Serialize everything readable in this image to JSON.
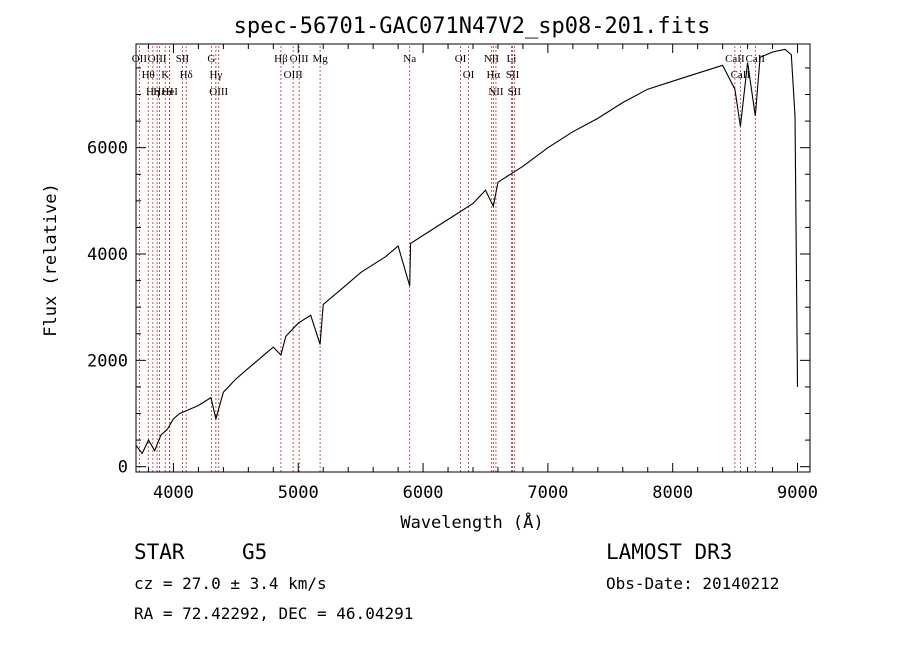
{
  "chart_data": {
    "type": "line",
    "title": "spec-56701-GAC071N47V2_sp08-201.fits",
    "xlabel": "Wavelength (Å)",
    "ylabel": "Flux (relative)",
    "xlim": [
      3700,
      9100
    ],
    "ylim": [
      -100,
      7950
    ],
    "xticks": [
      4000,
      5000,
      6000,
      7000,
      8000,
      9000
    ],
    "xtick_labels": [
      "4000",
      "5000",
      "6000",
      "7000",
      "8000",
      "9000"
    ],
    "yticks": [
      0,
      2000,
      4000,
      6000
    ],
    "ytick_labels": [
      "0",
      "2000",
      "4000",
      "6000"
    ],
    "grid": false,
    "series": [
      {
        "name": "flux",
        "x": [
          3700,
          3750,
          3800,
          3850,
          3900,
          3950,
          4000,
          4050,
          4100,
          4200,
          4300,
          4340,
          4400,
          4500,
          4600,
          4700,
          4800,
          4861,
          4900,
          5000,
          5100,
          5175,
          5200,
          5300,
          5400,
          5500,
          5600,
          5700,
          5800,
          5893,
          5900,
          6000,
          6100,
          6200,
          6300,
          6400,
          6500,
          6563,
          6600,
          6700,
          6800,
          7000,
          7200,
          7400,
          7600,
          7800,
          8000,
          8200,
          8400,
          8498,
          8542,
          8600,
          8662,
          8700,
          8800,
          8900,
          8950,
          8980,
          9000
        ],
        "y": [
          400,
          250,
          500,
          300,
          600,
          700,
          900,
          1000,
          1050,
          1150,
          1300,
          900,
          1400,
          1650,
          1850,
          2050,
          2250,
          2100,
          2450,
          2700,
          2850,
          2300,
          3050,
          3250,
          3450,
          3650,
          3800,
          3950,
          4150,
          3400,
          4200,
          4350,
          4500,
          4650,
          4800,
          4950,
          5200,
          4900,
          5350,
          5500,
          5650,
          6000,
          6300,
          6550,
          6850,
          7100,
          7250,
          7400,
          7550,
          7100,
          6400,
          7600,
          6600,
          7700,
          7800,
          7850,
          7750,
          6600,
          1500
        ]
      }
    ],
    "lines": [
      {
        "label": "Hθ",
        "x": 3798
      },
      {
        "label": "OII",
        "x": 3727
      },
      {
        "label": "OIII",
        "x": 3869
      },
      {
        "label": "Hε",
        "x": 3889
      },
      {
        "label": "Hη",
        "x": 3835
      },
      {
        "label": "K",
        "x": 3934
      },
      {
        "label": "H",
        "x": 3969
      },
      {
        "label": "HeI",
        "x": 3970
      },
      {
        "label": "SII",
        "x": 4072
      },
      {
        "label": "Hδ",
        "x": 4102
      },
      {
        "label": "OIII",
        "x": 4363
      },
      {
        "label": "Hγ",
        "x": 4340
      },
      {
        "label": "G",
        "x": 4304
      },
      {
        "label": "Hβ",
        "x": 4861
      },
      {
        "label": "OIII",
        "x": 4959
      },
      {
        "label": "OIII",
        "x": 5007
      },
      {
        "label": "Mg",
        "x": 5175
      },
      {
        "label": "Na",
        "x": 5893
      },
      {
        "label": "OI",
        "x": 6300
      },
      {
        "label": "OI",
        "x": 6364
      },
      {
        "label": "Hα",
        "x": 6563
      },
      {
        "label": "NII",
        "x": 6548
      },
      {
        "label": "NII",
        "x": 6584
      },
      {
        "label": "SII",
        "x": 6717
      },
      {
        "label": "SII",
        "x": 6731
      },
      {
        "label": "Li",
        "x": 6708
      },
      {
        "label": "CaII",
        "x": 8498
      },
      {
        "label": "CaII",
        "x": 8542
      },
      {
        "label": "CaII",
        "x": 8662
      }
    ]
  },
  "info": {
    "class": "STAR",
    "subclass": "G5",
    "survey": "LAMOST DR3",
    "redshift": "cz = 27.0 ± 3.4 km/s",
    "obs_date": "Obs-Date: 20140212",
    "coords": "RA =  72.42292, DEC =  46.04291"
  },
  "colors": {
    "spectrum": "#000000",
    "line_markers": "#b03030"
  }
}
